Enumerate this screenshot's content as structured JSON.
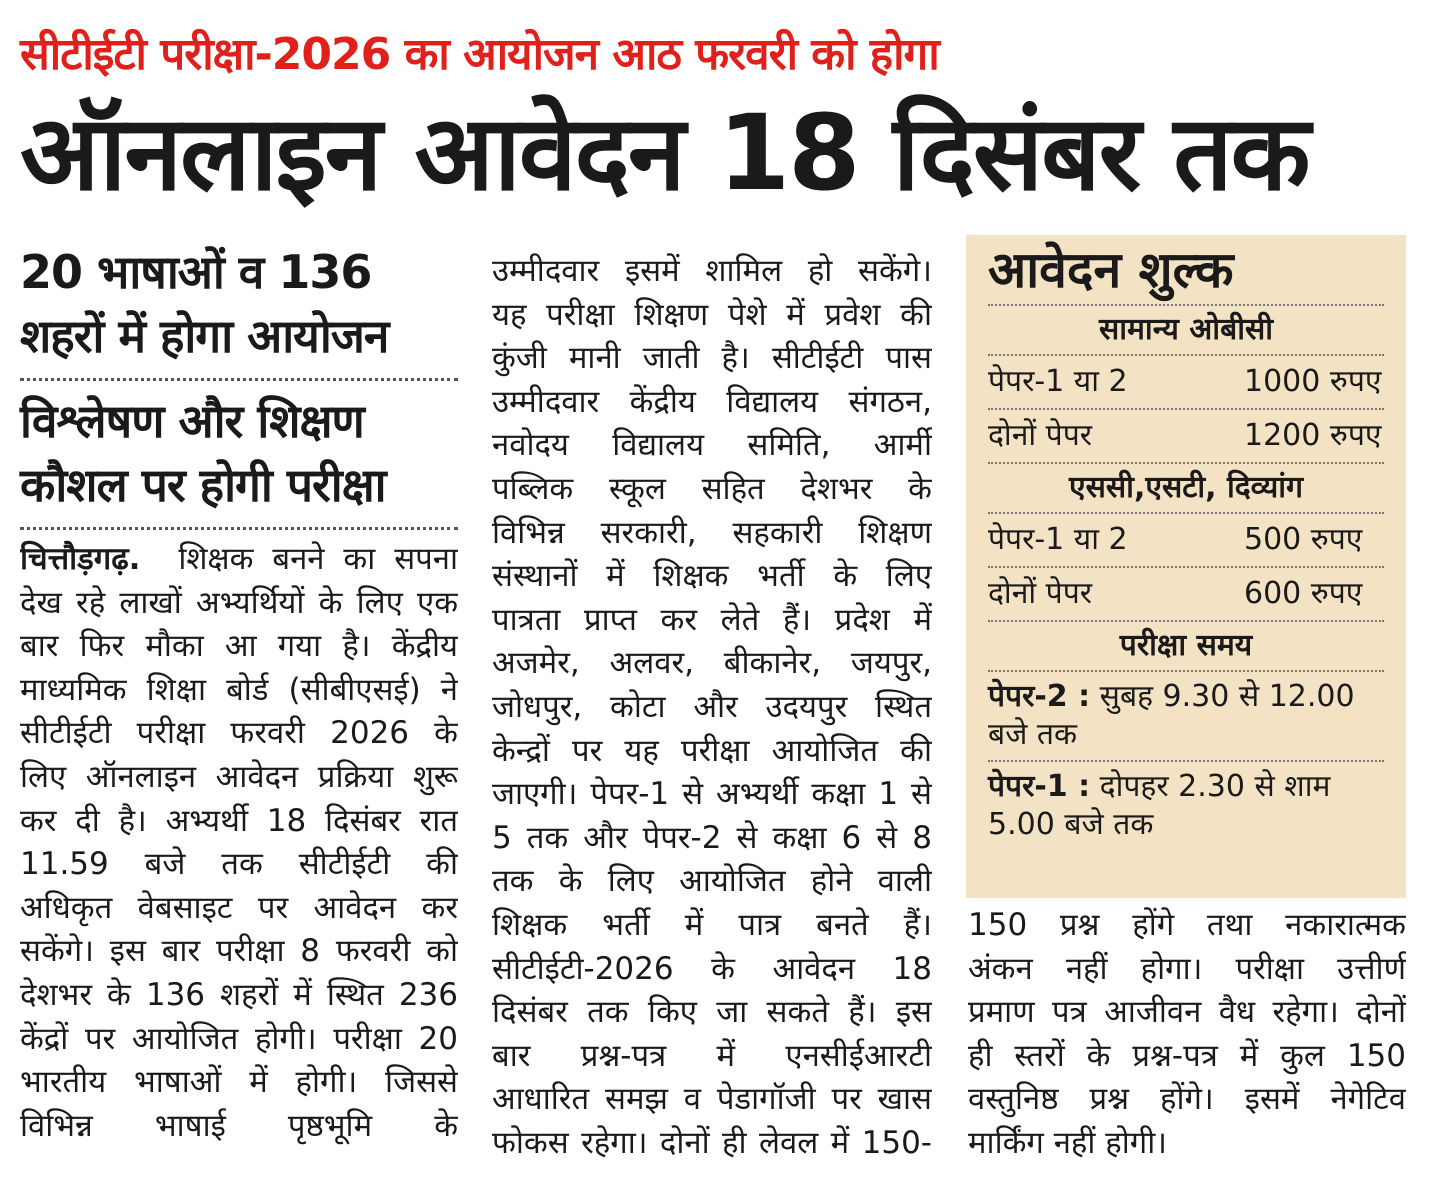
{
  "kicker": "सीटीईटी परीक्षा-2026 का आयोजन आठ फरवरी को होगा",
  "headline": "ऑनलाइन आवेदन 18 दिसंबर तक",
  "subheads": [
    "20 भाषाओं व 136",
    "शहरों में होगा आयोजन",
    "विश्लेषण और शिक्षण",
    "कौशल पर होगी परीक्षा"
  ],
  "col1": {
    "dateline": "चित्तौड़गढ़.",
    "lines": [
      "शिक्षक बनने का सपना",
      "देख रहे लाखों अभ्यर्थियों के लिए एक",
      "बार फिर मौका आ गया है। केंद्रीय",
      "माध्यमिक शिक्षा बोर्ड (सीबीएसई) ने",
      "सीटीईटी परीक्षा फरवरी 2026 के",
      "लिए ऑनलाइन आवेदन प्रक्रिया शुरू",
      "कर दी है। अभ्यर्थी 18 दिसंबर रात",
      "11.59 बजे तक सीटीईटी की",
      "अधिकृत वेबसाइट पर आवेदन कर",
      "सकेंगे। इस बार परीक्षा 8 फरवरी को",
      "देशभर के 136 शहरों में स्थित 236",
      "केंद्रों पर आयोजित होगी। परीक्षा 20",
      "भारतीय भाषाओं में होगी। जिससे",
      "विभिन्न भाषाई पृष्ठभूमि के"
    ]
  },
  "col2": {
    "lines": [
      "उम्मीदवार इसमें शामिल हो सकेंगे।",
      "यह परीक्षा शिक्षण पेशे में प्रवेश की",
      "कुंजी मानी जाती है। सीटीईटी पास",
      "उम्मीदवार केंद्रीय विद्यालय संगठन,",
      "नवोदय विद्यालय समिति, आर्मी",
      "पब्लिक स्कूल सहित देशभर के",
      "विभिन्न सरकारी, सहकारी शिक्षण",
      "संस्थानों में शिक्षक भर्ती के लिए",
      "पात्रता प्राप्त कर लेते हैं। प्रदेश में",
      "अजमेर, अलवर, बीकानेर, जयपुर,",
      "जोधपुर, कोटा और उदयपुर स्थित",
      "केन्द्रों पर यह परीक्षा आयोजित की",
      "जाएगी। पेपर-1 से अभ्यर्थी कक्षा 1 से",
      "5 तक और पेपर-2 से कक्षा 6 से 8",
      "तक के लिए आयोजित होने वाली",
      "शिक्षक भर्ती में पात्र बनते हैं।",
      "सीटीईटी-2026 के आवेदन 18",
      "दिसंबर तक किए जा सकते हैं। इस",
      "बार प्रश्न-पत्र में एनसीईआरटी",
      "आधारित समझ व पेडागॉजी पर खास",
      "फोकस रहेगा। दोनों ही लेवल में 150-"
    ]
  },
  "col3": {
    "lines": [
      "150 प्रश्न होंगे तथा नकारात्मक",
      "अंकन नहीं होगा। परीक्षा उत्तीर्ण",
      "प्रमाण पत्र आजीवन वैध रहेगा। दोनों",
      "ही स्तरों के प्रश्न-पत्र में कुल 150",
      "वस्तुनिष्ठ प्रश्न होंगे। इसमें नेगेटिव",
      "मार्किंग नहीं होगी।"
    ]
  },
  "fee_box": {
    "title": "आवेदन शुल्क",
    "general_heading": "सामान्य ओबीसी",
    "general": [
      {
        "label": "पेपर-1 या 2",
        "amount": "1000 रुपए"
      },
      {
        "label": "दोनों पेपर",
        "amount": "1200 रुपए"
      }
    ],
    "reserved_heading": "एससी,एसटी, दिव्यांग",
    "reserved": [
      {
        "label": "पेपर-1 या 2",
        "amount": "500 रुपए"
      },
      {
        "label": "दोनों पेपर",
        "amount": "600 रुपए"
      }
    ],
    "time_heading": "परीक्षा समय",
    "times": [
      {
        "label": "पेपर-2 :",
        "text": "सुबह 9.30 से 12.00 बजे तक"
      },
      {
        "label": "पेपर-1 :",
        "text": "दोपहर 2.30 से शाम 5.00 बजे तक"
      }
    ]
  },
  "colors": {
    "kicker": "#e0201b",
    "fee_box_bg": "#f3e3c4"
  }
}
